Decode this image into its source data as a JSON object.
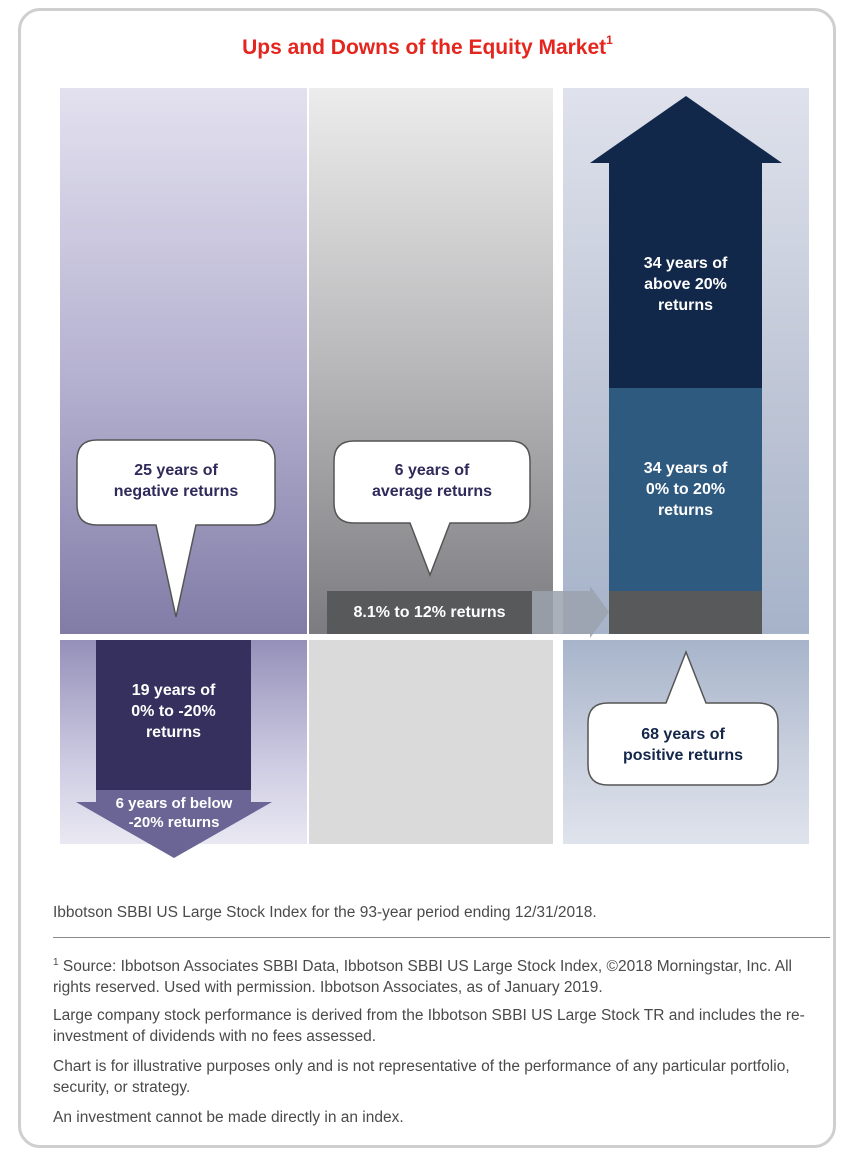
{
  "title": {
    "text": "Ups and Downs of the Equity Market",
    "footnote_ref": "1"
  },
  "diagram": {
    "negative": {
      "callout": [
        "25 years of",
        "negative returns"
      ],
      "mild": [
        "19 years of",
        "0% to -20%",
        "returns"
      ],
      "severe": [
        "6 years of below",
        "-20% returns"
      ]
    },
    "average": {
      "callout": [
        "6 years of",
        "average returns"
      ],
      "range": "8.1% to 12% returns"
    },
    "positive": {
      "high": [
        "34 years of",
        "above 20%",
        "returns"
      ],
      "moderate": [
        "34 years of",
        "0% to 20%",
        "returns"
      ],
      "callout": [
        "68 years of",
        "positive returns"
      ]
    }
  },
  "colors": {
    "title": "#e4261f",
    "negative_bar": "#36305f",
    "negative_arrow": "#6a6595",
    "range_box": "#58595b",
    "positive_high": "#12284b",
    "positive_mid": "#2f5a80"
  },
  "notes": {
    "caption": "Ibbotson SBBI US Large Stock Index for the 93-year period ending 12/31/2018.",
    "footnote_marker": "1",
    "source": " Source: Ibbotson Associates SBBI Data, Ibbotson SBBI US Large Stock Index, ©2018 Morningstar, Inc. All rights reserved. Used with permission. Ibbotson Associates, as of January 2019.",
    "performance": "Large company stock performance is derived from the Ibbotson SBBI US Large Stock TR and includes the re-investment of dividends with no fees assessed.",
    "illustrative": "Chart is for illustrative purposes only and is not representative of the performance of any particular portfolio, security, or strategy.",
    "index": "An investment cannot be made directly in an index."
  }
}
